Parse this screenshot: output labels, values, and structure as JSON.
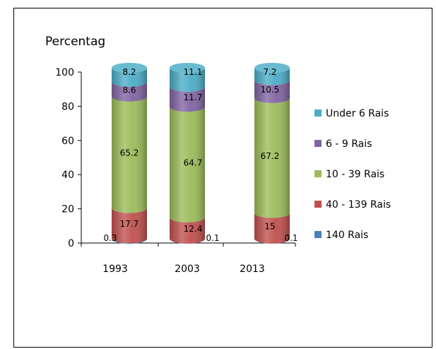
{
  "chart_data": {
    "type": "bar",
    "stacked": true,
    "style": "3d-cylinder",
    "ylabel": "Percentag",
    "categories": [
      "1993",
      "2003",
      "2013"
    ],
    "ylim": [
      0,
      100
    ],
    "yticks": [
      0,
      20,
      40,
      60,
      80,
      100
    ],
    "legend_position": "right",
    "series": [
      {
        "name": "140 Rais",
        "color": "#4a7ebb",
        "values": [
          0.3,
          0.1,
          0.1
        ]
      },
      {
        "name": "40 - 139 Rais",
        "color": "#c0504d",
        "values": [
          17.7,
          12.4,
          15
        ]
      },
      {
        "name": "10 - 39 Rais",
        "color": "#9bbb59",
        "values": [
          65.2,
          64.7,
          67.2
        ]
      },
      {
        "name": "6 - 9 Rais",
        "color": "#8064a2",
        "values": [
          8.6,
          11.7,
          10.5
        ]
      },
      {
        "name": "Under 6 Rais",
        "color": "#4bacc6",
        "values": [
          8.2,
          11.1,
          7.2
        ]
      }
    ],
    "data_labels": [
      [
        "0.3",
        "17.7",
        "65.2",
        "8.6",
        "8.2"
      ],
      [
        "0.1",
        "12.4",
        "64.7",
        "11.7",
        "11.1"
      ],
      [
        "0.1",
        "15",
        "67.2",
        "10.5",
        "7.2"
      ]
    ]
  }
}
